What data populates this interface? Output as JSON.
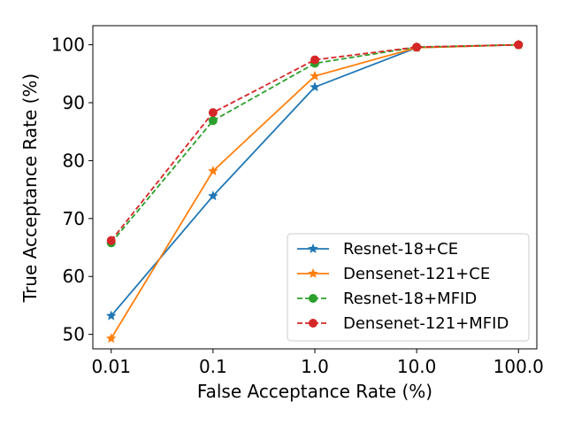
{
  "chart_data": {
    "type": "line",
    "title": "",
    "xlabel": "False Acceptance Rate (%)",
    "ylabel": "True Acceptance Rate (%)",
    "x_scale": "log",
    "categories": [
      "0.01",
      "0.1",
      "1.0",
      "10.0",
      "100.0"
    ],
    "x": [
      0.01,
      0.1,
      1.0,
      10.0,
      100.0
    ],
    "yticks": [
      50,
      60,
      70,
      80,
      90,
      100
    ],
    "ylim": [
      47.5,
      103.3
    ],
    "grid": false,
    "legend_position": "lower-right",
    "series": [
      {
        "name": "Resnet-18+CE",
        "color": "#1f77b4",
        "linestyle": "solid",
        "marker": "star",
        "values": [
          53.2,
          73.9,
          92.7,
          99.5,
          100.0
        ]
      },
      {
        "name": "Densenet-121+CE",
        "color": "#ff7f0e",
        "linestyle": "solid",
        "marker": "star",
        "values": [
          49.3,
          78.2,
          94.6,
          99.5,
          100.0
        ]
      },
      {
        "name": "Resnet-18+MFID",
        "color": "#2ca02c",
        "linestyle": "dashed",
        "marker": "circle",
        "values": [
          65.8,
          86.9,
          96.8,
          99.6,
          100.0
        ]
      },
      {
        "name": "Densenet-121+MFID",
        "color": "#d62728",
        "linestyle": "dashed",
        "marker": "circle",
        "values": [
          66.2,
          88.3,
          97.4,
          99.6,
          100.0
        ]
      }
    ]
  }
}
